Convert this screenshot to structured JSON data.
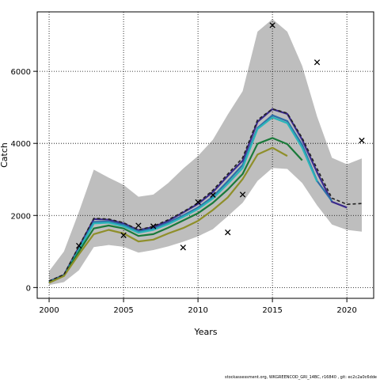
{
  "chart_data": {
    "type": "line",
    "xlabel": "Years",
    "ylabel": "Catch",
    "xlim": [
      1999.2,
      2021.8
    ],
    "ylim": [
      -300,
      7650
    ],
    "xticks": [
      2000,
      2005,
      2010,
      2015,
      2020
    ],
    "yticks": [
      0,
      2000,
      4000,
      6000
    ],
    "grid": true,
    "band": {
      "x": [
        2000,
        2001,
        2002,
        2003,
        2004,
        2005,
        2006,
        2007,
        2008,
        2009,
        2010,
        2011,
        2012,
        2013,
        2014,
        2015,
        2016,
        2017,
        2018,
        2019,
        2020,
        2021
      ],
      "upper": [
        450,
        1000,
        2100,
        3270,
        3050,
        2850,
        2520,
        2580,
        2900,
        3300,
        3650,
        4100,
        4800,
        5450,
        7100,
        7450,
        7100,
        6150,
        4750,
        3600,
        3420,
        3580
      ],
      "lower": [
        70,
        150,
        480,
        1120,
        1180,
        1130,
        970,
        1040,
        1140,
        1270,
        1420,
        1620,
        1980,
        2350,
        2960,
        3320,
        3290,
        2900,
        2280,
        1750,
        1600,
        1550
      ],
      "color": "#bebebe"
    },
    "series": [
      {
        "x": [
          2000,
          2001,
          2002,
          2003,
          2004,
          2005,
          2006,
          2007,
          2008,
          2009,
          2010,
          2011,
          2012,
          2013,
          2014,
          2015,
          2016,
          2017,
          2018,
          2019,
          2020
        ],
        "values": [
          170,
          350,
          1120,
          1900,
          1880,
          1780,
          1590,
          1680,
          1850,
          2080,
          2320,
          2650,
          3100,
          3520,
          4600,
          4950,
          4820,
          4100,
          3200,
          2380,
          2220
        ],
        "color": "#3b2a8c",
        "width": 2.2
      },
      {
        "x": [
          2000,
          2001,
          2002,
          2003,
          2004,
          2005,
          2006,
          2007,
          2008,
          2009,
          2010,
          2011,
          2012,
          2013,
          2014,
          2015,
          2016,
          2017,
          2018,
          2019
        ],
        "values": [
          160,
          340,
          1080,
          1820,
          1830,
          1740,
          1560,
          1630,
          1800,
          2000,
          2220,
          2520,
          2950,
          3400,
          4430,
          4780,
          4620,
          3960,
          2960,
          2400
        ],
        "color": "#2e6fa8",
        "width": 2.2
      },
      {
        "x": [
          2000,
          2001,
          2002,
          2003,
          2004,
          2005,
          2006,
          2007,
          2008,
          2009,
          2010,
          2011,
          2012,
          2013,
          2014,
          2015,
          2016,
          2017,
          2018
        ],
        "values": [
          150,
          330,
          1040,
          1780,
          1800,
          1700,
          1520,
          1600,
          1760,
          1960,
          2180,
          2470,
          2880,
          3320,
          4400,
          4720,
          4560,
          3880,
          2940
        ],
        "color": "#2ab5b9",
        "width": 2.2
      },
      {
        "x": [
          2000,
          2001,
          2002,
          2003,
          2004,
          2005,
          2006,
          2007,
          2008,
          2009,
          2010,
          2011,
          2012,
          2013,
          2014,
          2015,
          2016,
          2017
        ],
        "values": [
          140,
          330,
          1000,
          1640,
          1720,
          1640,
          1430,
          1480,
          1660,
          1860,
          2060,
          2350,
          2720,
          3150,
          3990,
          4150,
          3980,
          3530
        ],
        "color": "#1a7a3a",
        "width": 2.2
      },
      {
        "x": [
          2000,
          2001,
          2002,
          2003,
          2004,
          2005,
          2006,
          2007,
          2008,
          2009,
          2010,
          2011,
          2012,
          2013,
          2014,
          2015,
          2016
        ],
        "values": [
          130,
          320,
          920,
          1480,
          1600,
          1500,
          1280,
          1330,
          1500,
          1650,
          1850,
          2150,
          2500,
          3010,
          3690,
          3880,
          3650
        ],
        "color": "#8f8f2a",
        "width": 2.2
      },
      {
        "x": [
          2000,
          2001,
          2002,
          2003,
          2004,
          2005,
          2006,
          2007,
          2008,
          2009,
          2010,
          2011,
          2012,
          2013,
          2014,
          2015,
          2016,
          2017,
          2018,
          2019,
          2020,
          2021
        ],
        "values": [
          180,
          360,
          1150,
          1920,
          1900,
          1800,
          1600,
          1700,
          1880,
          2100,
          2350,
          2700,
          3150,
          3600,
          4650,
          4960,
          4840,
          4150,
          3300,
          2480,
          2310,
          2330
        ],
        "color": "#222222",
        "width": 1.6,
        "dashed": true
      }
    ],
    "observed": {
      "x": [
        2002,
        2005,
        2006,
        2007,
        2009,
        2010,
        2011,
        2012,
        2013,
        2015,
        2018,
        2021
      ],
      "values": [
        1160,
        1450,
        1720,
        1700,
        1110,
        2370,
        2570,
        1530,
        2580,
        7280,
        6250,
        4080
      ],
      "marker": "x"
    }
  },
  "footer": "stockassessment.org, WKGREENCOD_GRI_14BC, r16840 , git: ec2c2a0c6dde"
}
